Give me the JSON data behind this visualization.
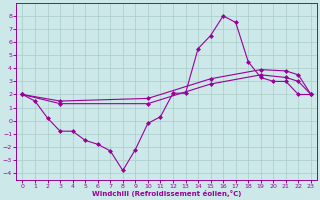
{
  "xlabel": "Windchill (Refroidissement éolien,°C)",
  "background_color": "#cce8e8",
  "grid_color": "#aacccc",
  "line_color": "#990099",
  "xlim": [
    -0.5,
    23.5
  ],
  "ylim": [
    -4.5,
    9.0
  ],
  "xticks": [
    0,
    1,
    2,
    3,
    4,
    5,
    6,
    7,
    8,
    9,
    10,
    11,
    12,
    13,
    14,
    15,
    16,
    17,
    18,
    19,
    20,
    21,
    22,
    23
  ],
  "yticks": [
    -4,
    -3,
    -2,
    -1,
    0,
    1,
    2,
    3,
    4,
    5,
    6,
    7,
    8
  ],
  "line1_x": [
    0,
    1,
    2,
    3,
    4,
    5,
    6,
    7,
    8,
    9,
    10,
    11,
    12,
    13,
    14,
    15,
    16,
    17,
    18,
    19,
    20,
    21,
    22,
    23
  ],
  "line1_y": [
    2.0,
    1.5,
    0.2,
    -0.8,
    -0.8,
    -1.5,
    -1.8,
    -2.3,
    -3.8,
    -2.2,
    -0.2,
    0.3,
    2.1,
    2.1,
    5.5,
    6.5,
    8.0,
    7.5,
    4.5,
    3.3,
    3.0,
    3.0,
    2.0,
    2.0
  ],
  "line2_x": [
    0,
    3,
    10,
    15,
    19,
    21,
    22,
    23
  ],
  "line2_y": [
    2.0,
    1.3,
    1.3,
    2.8,
    3.5,
    3.3,
    3.0,
    2.0
  ],
  "line3_x": [
    0,
    3,
    10,
    15,
    19,
    21,
    22,
    23
  ],
  "line3_y": [
    2.0,
    1.5,
    1.7,
    3.2,
    3.9,
    3.8,
    3.5,
    2.0
  ]
}
